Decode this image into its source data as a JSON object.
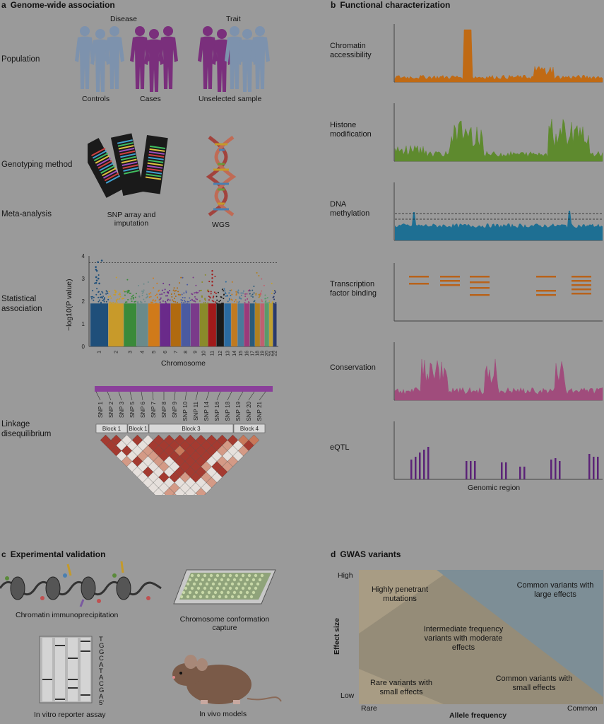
{
  "panel_a": {
    "letter": "a",
    "title": "Genome-wide association",
    "headers": {
      "disease": "Disease",
      "trait": "Trait"
    },
    "row_labels": {
      "population": "Population",
      "genotyping": "Genotyping method",
      "meta": "Meta-analysis",
      "statistical": "Statistical association",
      "linkage": "Linkage disequilibrium"
    },
    "population_groups": [
      "Controls",
      "Cases",
      "Unselected sample"
    ],
    "genotyping_methods": [
      "SNP array and imputation",
      "WGS"
    ],
    "manhattan": {
      "y_axis_label": "−log10(P value)",
      "x_axis_label": "Chromosome",
      "y_ticks": [
        "0",
        "1",
        "2",
        "3",
        "4"
      ],
      "chromosomes": [
        "1",
        "2",
        "3",
        "4",
        "5",
        "6",
        "7",
        "8",
        "9",
        "10",
        "11",
        "12",
        "13",
        "14",
        "15",
        "16",
        "17",
        "18",
        "19",
        "20",
        "21",
        "22"
      ]
    },
    "ld": {
      "snps": [
        "SNP 1",
        "SNP 2",
        "SNP 3",
        "SNP 5",
        "SNP 6",
        "SNP 7",
        "SNP 8",
        "SNP 9",
        "SNP 10",
        "SNP 11",
        "SNP 14",
        "SNP 16",
        "SNP 18",
        "SNP 19",
        "SNP 20",
        "SNP 21"
      ],
      "blocks": [
        "Block 1",
        "Block 1",
        "Block 3",
        "Block 4"
      ]
    },
    "colors": {
      "controls": "#7d92ad",
      "cases": "#7a2f7c",
      "purple_bar": "#8a3f9a"
    }
  },
  "panel_b": {
    "letter": "b",
    "title": "Functional characterization",
    "tracks": [
      {
        "label": "Chromatin accessibility",
        "color": "#c06a14"
      },
      {
        "label": "Histone modification",
        "color": "#5e8a2e"
      },
      {
        "label": "DNA methylation",
        "color": "#1e6f93"
      },
      {
        "label": "Transcription factor binding",
        "color": "#b8621a"
      },
      {
        "label": "Conservation",
        "color": "#a04c7c"
      },
      {
        "label": "eQTL",
        "color": "#5b2377"
      }
    ],
    "x_axis_label": "Genomic region"
  },
  "panel_c": {
    "letter": "c",
    "title": "Experimental validation",
    "items": [
      "Chromatin immunoprecipitation",
      "Chromosome conformation capture",
      "In vitro reporter assay",
      "In vivo models"
    ],
    "sequence": [
      "T",
      "G",
      "G",
      "C",
      "A",
      "T",
      "A",
      "C",
      "G",
      "A",
      "5'"
    ]
  },
  "panel_d": {
    "letter": "d",
    "title": "GWAS variants",
    "y_axis_label": "Effect size",
    "x_axis_label": "Allele frequency",
    "y_ticks": [
      "High",
      "Low"
    ],
    "x_ticks": [
      "Rare",
      "Common"
    ],
    "regions": [
      "Highly penetrant mutations",
      "Common variants with large effects",
      "Intermediate frequency variants with moderate effects",
      "Rare variants with small effects",
      "Common variants with small effects"
    ],
    "colors": {
      "top_left": "#a89c84",
      "middle": "#958c78",
      "top_right": "#7d8e96"
    }
  }
}
